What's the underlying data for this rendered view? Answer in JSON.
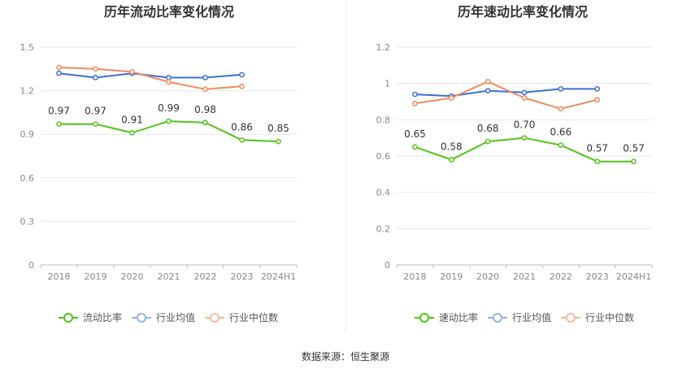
{
  "chart_data": [
    {
      "type": "line",
      "title": "历年流动比率变化情况",
      "x": [
        "2018",
        "2019",
        "2020",
        "2021",
        "2022",
        "2023",
        "2024H1"
      ],
      "ylim": [
        0,
        1.5
      ],
      "yticks": [
        "0",
        "0.3",
        "0.6",
        "0.9",
        "1.2",
        "1.5"
      ],
      "grid": true,
      "legend_position": "bottom",
      "series": [
        {
          "name": "流动比率",
          "color": "#52c41a",
          "values": [
            0.97,
            0.97,
            0.91,
            0.99,
            0.98,
            0.86,
            0.85
          ],
          "labels": [
            "0.97",
            "0.97",
            "0.91",
            "0.99",
            "0.98",
            "0.86",
            "0.85"
          ]
        },
        {
          "name": "行业均值",
          "color": "#3a6fd8",
          "values": [
            1.32,
            1.29,
            1.32,
            1.29,
            1.29,
            1.31,
            null
          ]
        },
        {
          "name": "行业中位数",
          "color": "#f08a5d",
          "values": [
            1.36,
            1.35,
            1.33,
            1.26,
            1.21,
            1.23,
            null
          ]
        }
      ]
    },
    {
      "type": "line",
      "title": "历年速动比率变化情况",
      "x": [
        "2018",
        "2019",
        "2020",
        "2021",
        "2022",
        "2023",
        "2024H1"
      ],
      "ylim": [
        0,
        1.2
      ],
      "yticks": [
        "0",
        "0.2",
        "0.4",
        "0.6",
        "0.8",
        "1",
        "1.2"
      ],
      "grid": true,
      "legend_position": "bottom",
      "series": [
        {
          "name": "速动比率",
          "color": "#52c41a",
          "values": [
            0.65,
            0.58,
            0.68,
            0.7,
            0.66,
            0.57,
            0.57
          ],
          "labels": [
            "0.65",
            "0.58",
            "0.68",
            "0.70",
            "0.66",
            "0.57",
            "0.57"
          ]
        },
        {
          "name": "行业均值",
          "color": "#3a6fd8",
          "values": [
            0.94,
            0.93,
            0.96,
            0.95,
            0.97,
            0.97,
            null
          ]
        },
        {
          "name": "行业中位数",
          "color": "#f08a5d",
          "values": [
            0.89,
            0.92,
            1.01,
            0.92,
            0.86,
            0.91,
            null
          ]
        }
      ]
    }
  ],
  "footer": {
    "source": "数据来源：恒生聚源"
  }
}
